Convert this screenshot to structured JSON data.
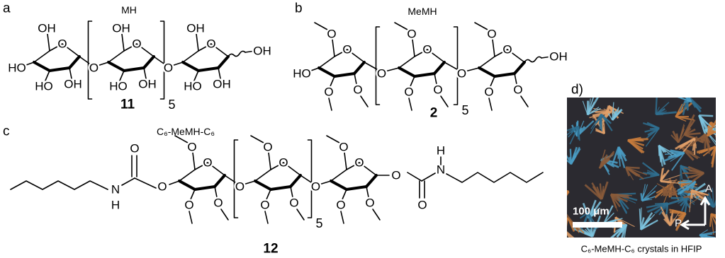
{
  "panels": [
    {
      "label": "a",
      "name": "MH",
      "compound_number": "11",
      "repeat_count": "5",
      "atoms": [
        "OH",
        "O",
        "HO",
        "HO",
        "OH",
        "O",
        "OH",
        "O",
        "HO",
        "OH",
        "O",
        "OH",
        "O",
        "HO",
        "OH",
        "OH"
      ]
    },
    {
      "label": "b",
      "name": "MeMH",
      "compound_number": "2",
      "repeat_count": "5",
      "atoms": [
        "O",
        "O",
        "HO",
        "O",
        "O",
        "O",
        "O",
        "O",
        "O",
        "O",
        "O",
        "O",
        "O",
        "O",
        "O",
        "OH"
      ]
    },
    {
      "label": "c",
      "name": "C₆-MeMH-C₆",
      "compound_number": "12",
      "repeat_count": "5",
      "atoms": [
        "O",
        "O",
        "O",
        "O",
        "O",
        "O",
        "O",
        "O",
        "O",
        "O",
        "O",
        "O",
        "O",
        "O",
        "O",
        "O",
        "O",
        "N",
        "H",
        "O",
        "N",
        "H"
      ]
    }
  ],
  "micrograph": {
    "label": "d)",
    "scale_bar": "100 μm",
    "analyzer": "A",
    "polarizer": "P",
    "caption": "C₆-MeMH-C₆ crystals in HFIP"
  }
}
